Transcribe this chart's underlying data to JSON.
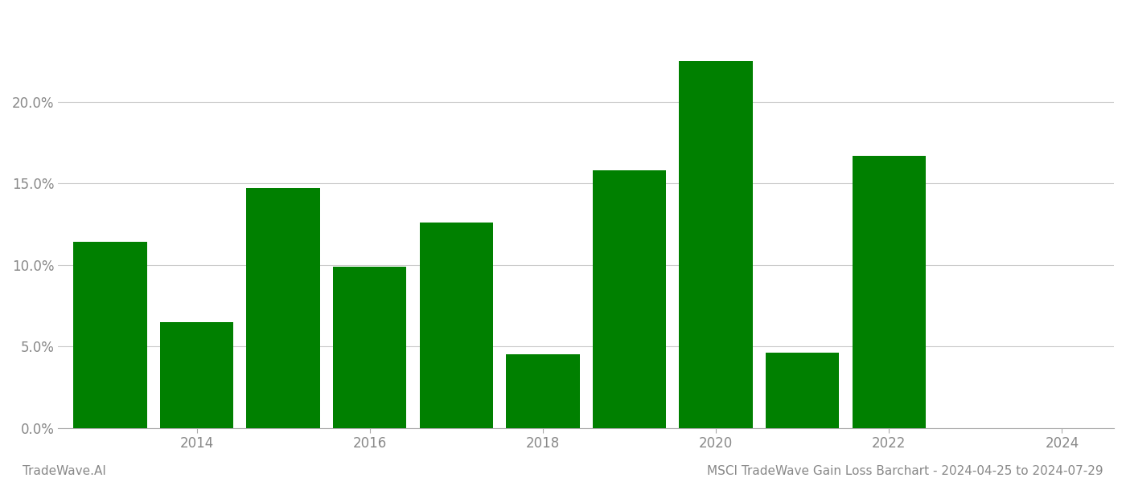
{
  "years": [
    2013,
    2014,
    2015,
    2016,
    2017,
    2018,
    2019,
    2020,
    2021,
    2022,
    2023
  ],
  "values": [
    0.114,
    0.065,
    0.147,
    0.099,
    0.126,
    0.045,
    0.158,
    0.225,
    0.046,
    0.167,
    0.0
  ],
  "bar_color": "#008000",
  "background_color": "#ffffff",
  "grid_color": "#cccccc",
  "ylabel_color": "#888888",
  "xlabel_color": "#888888",
  "footer_left": "TradeWave.AI",
  "footer_right": "MSCI TradeWave Gain Loss Barchart - 2024-04-25 to 2024-07-29",
  "footer_color": "#888888",
  "footer_fontsize": 11,
  "ytick_values": [
    0.0,
    0.05,
    0.1,
    0.15,
    0.2
  ],
  "ylim": [
    0,
    0.255
  ],
  "xlim": [
    2012.4,
    2024.6
  ],
  "xtick_positions": [
    2014,
    2016,
    2018,
    2020,
    2022,
    2024
  ],
  "xtick_labels": [
    "2014",
    "2016",
    "2018",
    "2020",
    "2022",
    "2024"
  ],
  "bar_width": 0.85
}
